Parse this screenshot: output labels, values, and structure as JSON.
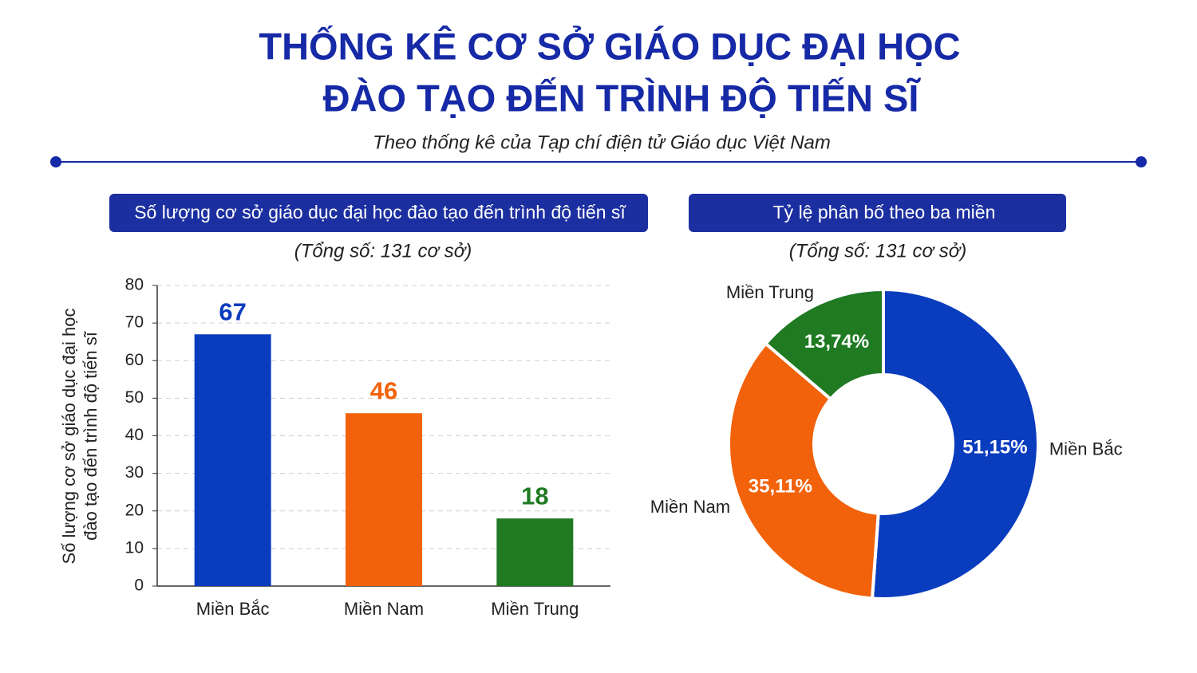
{
  "header": {
    "title": [
      "THỐNG KÊ CƠ SỞ GIÁO DỤC ĐẠI HỌC",
      "ĐÀO TẠO ĐẾN TRÌNH ĐỘ TIẾN SĨ"
    ],
    "subtitle": "Theo thống kê của Tạp chí điện tử Giáo dục Việt Nam"
  },
  "chart_data": [
    {
      "type": "bar",
      "title": "Số lượng cơ sở giáo dục đại học đào tạo đến trình độ tiến sĩ",
      "subtitle": "(Tổng số: 131 cơ sở)",
      "y_label": [
        "Số lượng cơ sở giáo dục đại học",
        "đào tạo đến trình độ tiến sĩ"
      ],
      "categories": [
        "Miền Bắc",
        "Miền Nam",
        "Miền Trung"
      ],
      "values": [
        67,
        46,
        18
      ],
      "colors": [
        "#0a3cbe",
        "#f2620a",
        "#1f7a22"
      ],
      "ylim": [
        0,
        80
      ],
      "yticks": [
        0,
        10,
        20,
        30,
        40,
        50,
        60,
        70,
        80
      ],
      "grid": true
    },
    {
      "type": "donut",
      "title": "Tỷ lệ phân bố theo ba miền",
      "subtitle": "(Tổng số: 131 cơ sở)",
      "categories": [
        "Miền Bắc",
        "Miền Nam",
        "Miền Trung"
      ],
      "values": [
        51.15,
        35.11,
        13.74
      ],
      "value_labels": [
        "51,15%",
        "35,11%",
        "13,74%"
      ],
      "colors": [
        "#0a3cbe",
        "#f2620a",
        "#1f7a22"
      ]
    }
  ]
}
